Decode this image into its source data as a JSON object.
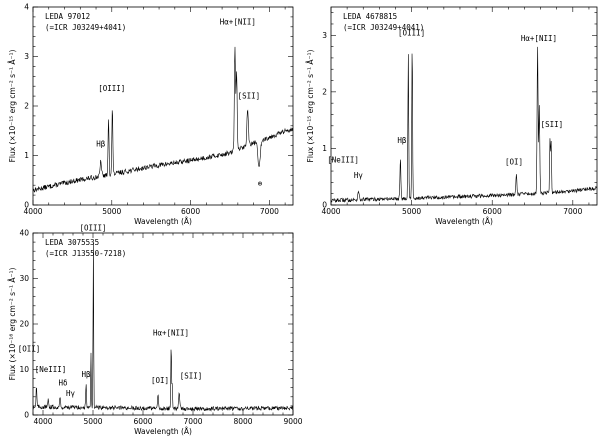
{
  "chart_data": [
    {
      "type": "line",
      "id": "p1",
      "title_lines": [
        "LEDA 97012",
        "(=ICR J03249+4041)"
      ],
      "xlabel": "Wavelength (Å)",
      "ylabel": "Flux (×10⁻¹⁵ erg cm⁻² s⁻¹ Å⁻¹)",
      "xlim": [
        4000,
        7300
      ],
      "ylim": [
        0,
        4
      ],
      "xticks": [
        4000,
        5000,
        6000,
        7000
      ],
      "yticks": [
        0,
        1,
        2,
        3,
        4
      ],
      "continuum": [
        [
          4000,
          0.3
        ],
        [
          4500,
          0.48
        ],
        [
          5000,
          0.62
        ],
        [
          5500,
          0.78
        ],
        [
          6000,
          0.9
        ],
        [
          6500,
          1.05
        ],
        [
          6800,
          1.25
        ],
        [
          7300,
          1.55
        ]
      ],
      "noise": 0.05,
      "lines": [
        {
          "x": 4861,
          "peak": 0.3,
          "w": 9
        },
        {
          "x": 4959,
          "peak": 1.15,
          "w": 6
        },
        {
          "x": 5007,
          "peak": 1.35,
          "w": 6
        },
        {
          "x": 6563,
          "peak": 2.1,
          "w": 7
        },
        {
          "x": 6584,
          "peak": 1.6,
          "w": 7
        },
        {
          "x": 6724,
          "peak": 0.7,
          "w": 10
        },
        {
          "x": 6870,
          "peak": -0.55,
          "w": 14
        }
      ],
      "annotations": [
        {
          "text": "[OIII]",
          "x": 5000,
          "y": 2.3
        },
        {
          "text": "Hβ",
          "x": 4860,
          "y": 1.18
        },
        {
          "text": "Hα+[NII]",
          "x": 6600,
          "y": 3.65
        },
        {
          "text": "[SII]",
          "x": 6740,
          "y": 2.15
        },
        {
          "text": "⊕",
          "x": 6880,
          "y": 0.38
        }
      ]
    },
    {
      "type": "line",
      "id": "p2",
      "title_lines": [
        "LEDA 4678815",
        "(=ICR J03249+4041)"
      ],
      "xlabel": "Wavelength (Å)",
      "ylabel": "Flux (×10⁻¹⁵ erg cm⁻² s⁻¹ Å⁻¹)",
      "xlim": [
        4000,
        7300
      ],
      "ylim": [
        0,
        3.5
      ],
      "xticks": [
        4000,
        5000,
        6000,
        7000
      ],
      "yticks": [
        0,
        1,
        2,
        3
      ],
      "continuum": [
        [
          4000,
          0.08
        ],
        [
          4500,
          0.1
        ],
        [
          5000,
          0.12
        ],
        [
          5500,
          0.14
        ],
        [
          6000,
          0.17
        ],
        [
          6500,
          0.2
        ],
        [
          7000,
          0.25
        ],
        [
          7300,
          0.3
        ]
      ],
      "noise": 0.035,
      "lines": [
        {
          "x": 3969,
          "peak": 0.35,
          "w": 8
        },
        {
          "x": 4340,
          "peak": 0.18,
          "w": 7
        },
        {
          "x": 4861,
          "peak": 0.7,
          "w": 6
        },
        {
          "x": 4959,
          "peak": 2.55,
          "w": 5
        },
        {
          "x": 5007,
          "peak": 2.75,
          "w": 5
        },
        {
          "x": 6300,
          "peak": 0.38,
          "w": 6
        },
        {
          "x": 6563,
          "peak": 2.6,
          "w": 6
        },
        {
          "x": 6584,
          "peak": 1.55,
          "w": 6
        },
        {
          "x": 6717,
          "peak": 0.95,
          "w": 5
        },
        {
          "x": 6731,
          "peak": 0.9,
          "w": 5
        }
      ],
      "annotations": [
        {
          "text": "[OIII]",
          "x": 5000,
          "y": 3.0
        },
        {
          "text": "Hβ",
          "x": 4880,
          "y": 1.1
        },
        {
          "text": "[NeIII]",
          "x": 4150,
          "y": 0.75
        },
        {
          "text": "Hγ",
          "x": 4340,
          "y": 0.48
        },
        {
          "text": "[OI]",
          "x": 6270,
          "y": 0.72
        },
        {
          "text": "Hα+[NII]",
          "x": 6580,
          "y": 2.9
        },
        {
          "text": "[SII]",
          "x": 6740,
          "y": 1.38
        }
      ]
    },
    {
      "type": "line",
      "id": "p3",
      "title_lines": [
        "LEDA 3075535",
        "(=ICR J13550-7218)"
      ],
      "xlabel": "Wavelength (Å)",
      "ylabel": "Flux (×10⁻¹⁶ erg cm⁻² s⁻¹ Å⁻¹)",
      "xlim": [
        3800,
        9000
      ],
      "ylim": [
        0,
        40
      ],
      "xticks": [
        4000,
        5000,
        6000,
        7000,
        8000,
        9000
      ],
      "yticks": [
        0,
        10,
        20,
        30,
        40
      ],
      "continuum": [
        [
          3800,
          1.8
        ],
        [
          4500,
          1.7
        ],
        [
          5500,
          1.6
        ],
        [
          6500,
          1.4
        ],
        [
          7500,
          1.4
        ],
        [
          9000,
          1.5
        ]
      ],
      "noise": 0.45,
      "lines": [
        {
          "x": 3727,
          "peak": 8.5,
          "w": 10
        },
        {
          "x": 3869,
          "peak": 4.5,
          "w": 8
        },
        {
          "x": 4102,
          "peak": 1.5,
          "w": 8
        },
        {
          "x": 4340,
          "peak": 2.5,
          "w": 8
        },
        {
          "x": 4861,
          "peak": 5.0,
          "w": 8
        },
        {
          "x": 4959,
          "peak": 12.0,
          "w": 6
        },
        {
          "x": 5007,
          "peak": 37.0,
          "w": 6
        },
        {
          "x": 6300,
          "peak": 2.8,
          "w": 8
        },
        {
          "x": 6563,
          "peak": 14.5,
          "w": 7
        },
        {
          "x": 6584,
          "peak": 5.5,
          "w": 7
        },
        {
          "x": 6724,
          "peak": 3.5,
          "w": 12
        }
      ],
      "annotations": [
        {
          "text": "[OIII]",
          "x": 5000,
          "y": 40.5
        },
        {
          "text": "[OII]",
          "x": 3720,
          "y": 14.0
        },
        {
          "text": "[NeIII]",
          "x": 4150,
          "y": 9.5
        },
        {
          "text": "Hβ",
          "x": 4860,
          "y": 8.3
        },
        {
          "text": "Hδ",
          "x": 4400,
          "y": 6.5
        },
        {
          "text": "Hγ",
          "x": 4550,
          "y": 4.2
        },
        {
          "text": "Hα+[NII]",
          "x": 6560,
          "y": 17.5
        },
        {
          "text": "[OI]",
          "x": 6340,
          "y": 7.0
        },
        {
          "text": "[SII]",
          "x": 6960,
          "y": 8.0
        }
      ]
    }
  ]
}
